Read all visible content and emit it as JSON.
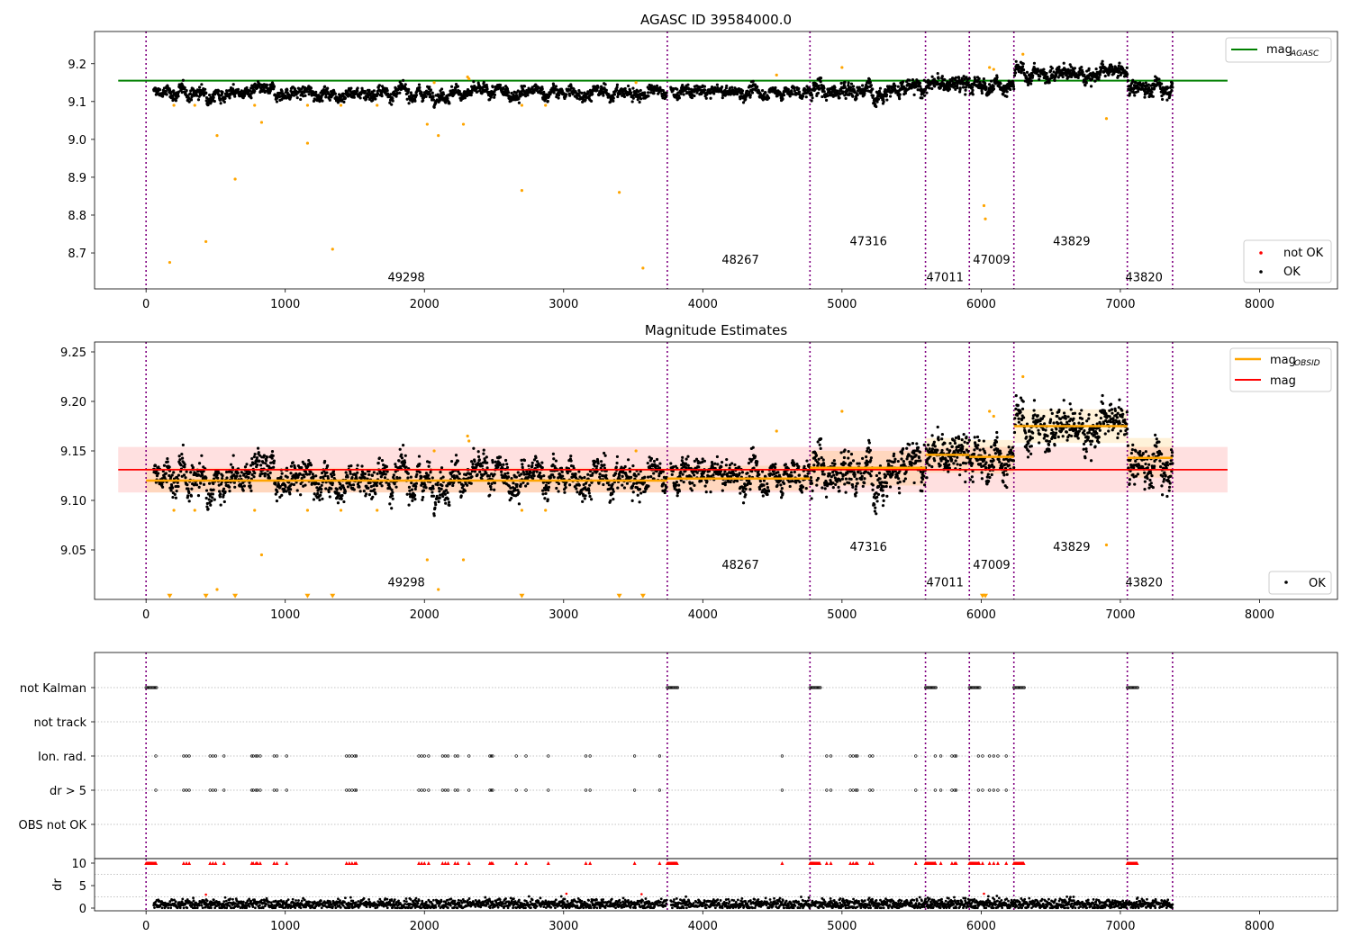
{
  "figure": {
    "title": "AGASC ID 39584000.0"
  },
  "chart_data": [
    {
      "type": "scatter",
      "title": "AGASC ID 39584000.0",
      "xlabel": "",
      "ylabel": "",
      "xlim": [
        -370,
        8560
      ],
      "ylim": [
        8.605,
        9.285
      ],
      "xticks": [
        0,
        1000,
        2000,
        3000,
        4000,
        5000,
        6000,
        7000,
        8000
      ],
      "yticks": [
        8.7,
        8.8,
        8.9,
        9.0,
        9.1,
        9.2
      ],
      "ytick_labels": [
        "8.7",
        "8.8",
        "8.9",
        "9.0",
        "9.1",
        "9.2"
      ],
      "grid": false,
      "obsid_boundaries": [
        0,
        3745,
        4770,
        5600,
        5915,
        6235,
        7050,
        7375
      ],
      "obsid_labels": [
        {
          "text": "49298",
          "x": 1870,
          "y": 8.625
        },
        {
          "text": "48267",
          "x": 4270,
          "y": 8.672
        },
        {
          "text": "47316",
          "x": 5190,
          "y": 8.72
        },
        {
          "text": "47011",
          "x": 5740,
          "y": 8.625
        },
        {
          "text": "47009",
          "x": 6075,
          "y": 8.672
        },
        {
          "text": "43829",
          "x": 6650,
          "y": 8.72
        },
        {
          "text": "43820",
          "x": 7170,
          "y": 8.625
        }
      ],
      "mag_agasc": {
        "name": "mag$_{AGASC}$",
        "legend_label": "mag",
        "legend_sub": "AGASC",
        "value": 9.155,
        "x_range": [
          -200,
          7770
        ],
        "color": "#008000"
      },
      "ok_segments": [
        {
          "x0": 55,
          "x1": 3740,
          "center": 9.123,
          "spread": 0.014,
          "n": 1500
        },
        {
          "x0": 3770,
          "x1": 4770,
          "center": 9.125,
          "spread": 0.013,
          "n": 420
        },
        {
          "x0": 4775,
          "x1": 5600,
          "center": 9.133,
          "spread": 0.018,
          "n": 380
        },
        {
          "x0": 5605,
          "x1": 5915,
          "center": 9.145,
          "spread": 0.017,
          "n": 150
        },
        {
          "x0": 5920,
          "x1": 6235,
          "center": 9.142,
          "spread": 0.016,
          "n": 150
        },
        {
          "x0": 6240,
          "x1": 7050,
          "center": 9.175,
          "spread": 0.016,
          "n": 360
        },
        {
          "x0": 7055,
          "x1": 7375,
          "center": 9.14,
          "spread": 0.018,
          "n": 150
        }
      ],
      "outliers": [
        {
          "x": 170,
          "y": 8.675
        },
        {
          "x": 200,
          "y": 9.09
        },
        {
          "x": 350,
          "y": 9.09
        },
        {
          "x": 430,
          "y": 8.73
        },
        {
          "x": 510,
          "y": 9.01
        },
        {
          "x": 640,
          "y": 8.895
        },
        {
          "x": 780,
          "y": 9.09
        },
        {
          "x": 830,
          "y": 9.045
        },
        {
          "x": 1160,
          "y": 8.99
        },
        {
          "x": 1160,
          "y": 9.09
        },
        {
          "x": 1340,
          "y": 8.71
        },
        {
          "x": 1400,
          "y": 9.09
        },
        {
          "x": 1660,
          "y": 9.09
        },
        {
          "x": 2020,
          "y": 9.04
        },
        {
          "x": 2070,
          "y": 9.15
        },
        {
          "x": 2100,
          "y": 9.01
        },
        {
          "x": 2280,
          "y": 9.04
        },
        {
          "x": 2310,
          "y": 9.165
        },
        {
          "x": 2320,
          "y": 9.16
        },
        {
          "x": 2700,
          "y": 8.865
        },
        {
          "x": 2700,
          "y": 9.09
        },
        {
          "x": 2870,
          "y": 9.09
        },
        {
          "x": 3400,
          "y": 8.86
        },
        {
          "x": 3520,
          "y": 9.15
        },
        {
          "x": 3570,
          "y": 8.66
        },
        {
          "x": 4530,
          "y": 9.17
        },
        {
          "x": 5000,
          "y": 9.19
        },
        {
          "x": 6020,
          "y": 8.825
        },
        {
          "x": 6030,
          "y": 8.79
        },
        {
          "x": 6060,
          "y": 9.19
        },
        {
          "x": 6090,
          "y": 9.185
        },
        {
          "x": 6300,
          "y": 9.225
        },
        {
          "x": 6900,
          "y": 9.055
        }
      ],
      "legend_status": [
        {
          "label": "not OK",
          "color": "#ff0000"
        },
        {
          "label": "OK",
          "color": "#000000"
        }
      ]
    },
    {
      "type": "scatter",
      "title": "Magnitude Estimates",
      "xlabel": "",
      "ylabel": "",
      "xlim": [
        -370,
        8560
      ],
      "ylim": [
        9.0,
        9.26
      ],
      "xticks": [
        0,
        1000,
        2000,
        3000,
        4000,
        5000,
        6000,
        7000,
        8000
      ],
      "yticks": [
        9.05,
        9.1,
        9.15,
        9.2,
        9.25
      ],
      "ytick_labels": [
        "9.05",
        "9.10",
        "9.15",
        "9.20",
        "9.25"
      ],
      "grid": false,
      "mag": {
        "name": "mag",
        "value": 9.131,
        "band": [
          9.108,
          9.154
        ],
        "x_range": [
          -200,
          7770
        ],
        "color": "#ff0000"
      },
      "mag_obsid": {
        "name": "mag$_{OBSID}$",
        "legend_label": "mag",
        "legend_sub": "OBSID",
        "color": "#ffa500",
        "segments": [
          {
            "x0": 0,
            "x1": 3745,
            "value": 9.12,
            "band": [
              9.108,
              9.133
            ]
          },
          {
            "x0": 3745,
            "x1": 4770,
            "value": 9.122,
            "band": [
              9.11,
              9.135
            ]
          },
          {
            "x0": 4770,
            "x1": 5600,
            "value": 9.133,
            "band": [
              9.115,
              9.15
            ]
          },
          {
            "x0": 5600,
            "x1": 5915,
            "value": 9.146,
            "band": [
              9.128,
              9.163
            ]
          },
          {
            "x0": 5915,
            "x1": 6235,
            "value": 9.144,
            "band": [
              9.127,
              9.161
            ]
          },
          {
            "x0": 6235,
            "x1": 7050,
            "value": 9.175,
            "band": [
              9.158,
              9.192
            ]
          },
          {
            "x0": 7050,
            "x1": 7375,
            "value": 9.143,
            "band": [
              9.123,
              9.163
            ]
          }
        ]
      },
      "lower_limits_y": 9.003,
      "lower_limits_x": [
        170,
        430,
        640,
        1160,
        1340,
        2700,
        3400,
        3570,
        6010,
        6030
      ],
      "legend_status": [
        {
          "label": "OK",
          "color": "#000000"
        }
      ]
    },
    {
      "type": "scatter",
      "title": "",
      "xlabel": "",
      "ylabel": "",
      "xlim": [
        -370,
        8560
      ],
      "category_axis": {
        "labels": [
          "not Kalman",
          "not track",
          "Ion. rad.",
          "dr > 5",
          "OBS not OK"
        ],
        "not_kalman_x": [
          0,
          3745,
          4770,
          5600,
          5915,
          6235,
          7050
        ],
        "not_kalman_width": 75,
        "ion_rad_x": [
          70,
          270,
          290,
          310,
          460,
          480,
          500,
          560,
          760,
          770,
          790,
          800,
          820,
          920,
          940,
          1010,
          1440,
          1460,
          1480,
          1500,
          1510,
          1960,
          1980,
          2000,
          2030,
          2130,
          2150,
          2170,
          2220,
          2240,
          2320,
          2470,
          2480,
          2490,
          2660,
          2730,
          2890,
          3160,
          3190,
          3510,
          3690,
          4570,
          4890,
          4920,
          5060,
          5080,
          5100,
          5110,
          5200,
          5220,
          5530,
          5670,
          5710,
          5790,
          5810,
          5820,
          5980,
          6010,
          6060,
          6090,
          6120,
          6180
        ]
      },
      "dr": {
        "ylabel": "dr",
        "ylim": [
          -0.6,
          11
        ],
        "yticks": [
          0,
          5,
          10
        ],
        "ytick_labels": [
          "0",
          "5",
          "10"
        ],
        "clip_value": 10,
        "clip_color": "#ff0000",
        "values_center": 0.9,
        "values_spread": 0.6,
        "gaps": [
          [
            3745,
            3770
          ],
          [
            4770,
            4775
          ]
        ]
      }
    }
  ],
  "xtick_labels": [
    "0",
    "1000",
    "2000",
    "3000",
    "4000",
    "5000",
    "6000",
    "7000",
    "8000"
  ],
  "colors": {
    "ok": "#000000",
    "not_ok": "#ff0000",
    "outlier": "#ffa500",
    "obsid_line": "#800080",
    "agasc": "#008000",
    "mag": "#ff0000",
    "mag_obsid": "#ffa500"
  }
}
